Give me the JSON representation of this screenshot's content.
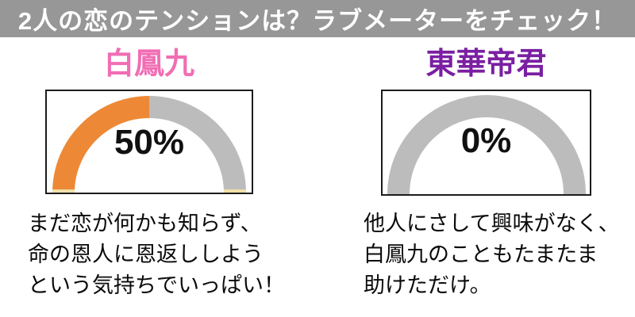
{
  "header": {
    "title": "2人の恋のテンションは？ラブメーターをチェック！",
    "bg_color": "#979797",
    "text_color": "#ffffff"
  },
  "chart_data": [
    {
      "type": "gauge",
      "character": "白鳳九",
      "title_color": "#f06eb4",
      "value": 50,
      "value_max": 100,
      "value_label": "50%",
      "fill_color": "#ed8936",
      "track_color": "#bcbcbc",
      "baseline_mark_color": "#efe0a8",
      "description_lines": [
        "まだ恋が何かも知らず、",
        "命の恩人に恩返ししよう",
        "という気持ちでいっぱい！"
      ]
    },
    {
      "type": "gauge",
      "character": "東華帝君",
      "title_color": "#7b1fa2",
      "value": 0,
      "value_max": 100,
      "value_label": "0%",
      "fill_color": "#ed8936",
      "track_color": "#bcbcbc",
      "description_lines": [
        "他人にさして興味がなく、",
        "白鳳九のこともたまたま",
        "助けただけ。"
      ]
    }
  ]
}
